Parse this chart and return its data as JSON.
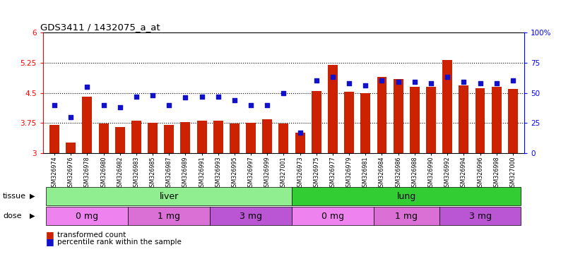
{
  "title": "GDS3411 / 1432075_a_at",
  "samples": [
    "GSM326974",
    "GSM326976",
    "GSM326978",
    "GSM326980",
    "GSM326982",
    "GSM326983",
    "GSM326985",
    "GSM326987",
    "GSM326989",
    "GSM326991",
    "GSM326993",
    "GSM326995",
    "GSM326997",
    "GSM326999",
    "GSM327001",
    "GSM326973",
    "GSM326975",
    "GSM326977",
    "GSM326979",
    "GSM326981",
    "GSM326984",
    "GSM326986",
    "GSM326988",
    "GSM326990",
    "GSM326992",
    "GSM326994",
    "GSM326996",
    "GSM326998",
    "GSM327000"
  ],
  "bar_values": [
    3.7,
    3.27,
    4.4,
    3.73,
    3.65,
    3.8,
    3.75,
    3.7,
    3.78,
    3.8,
    3.8,
    3.73,
    3.75,
    3.85,
    3.73,
    3.5,
    4.55,
    5.2,
    4.52,
    4.5,
    4.9,
    4.85,
    4.65,
    4.65,
    5.32,
    4.68,
    4.62,
    4.65,
    4.6
  ],
  "blue_pct": [
    40,
    30,
    55,
    40,
    38,
    47,
    48,
    40,
    46,
    47,
    47,
    44,
    40,
    40,
    50,
    17,
    60,
    63,
    58,
    56,
    60,
    59,
    59,
    58,
    63,
    59,
    58,
    58,
    60
  ],
  "tissue_groups": [
    {
      "label": "liver",
      "start": 0,
      "end": 15,
      "color": "#90EE90"
    },
    {
      "label": "lung",
      "start": 15,
      "end": 29,
      "color": "#32CD32"
    }
  ],
  "dose_groups": [
    {
      "label": "0 mg",
      "start": 0,
      "end": 5,
      "color": "#EE82EE"
    },
    {
      "label": "1 mg",
      "start": 5,
      "end": 10,
      "color": "#DA70D6"
    },
    {
      "label": "3 mg",
      "start": 10,
      "end": 15,
      "color": "#BA55D3"
    },
    {
      "label": "0 mg",
      "start": 15,
      "end": 20,
      "color": "#EE82EE"
    },
    {
      "label": "1 mg",
      "start": 20,
      "end": 24,
      "color": "#DA70D6"
    },
    {
      "label": "3 mg",
      "start": 24,
      "end": 29,
      "color": "#BA55D3"
    }
  ],
  "bar_color": "#CC2200",
  "blue_color": "#1111CC",
  "bar_bottom": 3.0,
  "ylim_left": [
    3.0,
    6.0
  ],
  "ylim_right": [
    0,
    100
  ],
  "yticks_left": [
    3.0,
    3.75,
    4.5,
    5.25,
    6.0
  ],
  "yticks_right": [
    0,
    25,
    50,
    75,
    100
  ],
  "ytick_labels_left": [
    "3",
    "3.75",
    "4.5",
    "5.25",
    "6"
  ],
  "ytick_labels_right": [
    "0",
    "25",
    "50",
    "75",
    "100%"
  ],
  "hlines": [
    3.75,
    4.5,
    5.25
  ],
  "tissue_label": "tissue",
  "dose_label": "dose",
  "legend_bar": "transformed count",
  "legend_blue": "percentile rank within the sample"
}
